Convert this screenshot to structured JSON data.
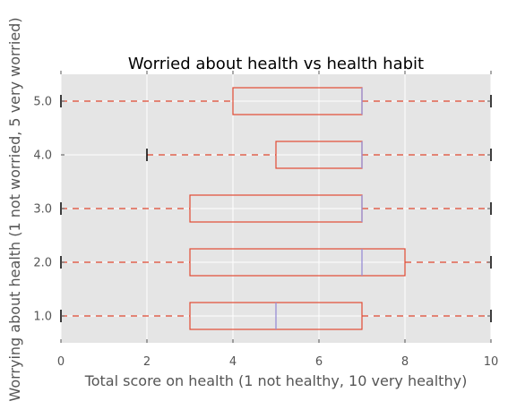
{
  "chart_data": {
    "type": "boxplot",
    "orientation": "horizontal",
    "title": "Worried about health vs health habit",
    "xlabel": "Total score on health (1 not healthy, 10 very healthy)",
    "ylabel": "Worrying about health (1 not worried, 5 very worried)",
    "xlim": [
      0,
      10
    ],
    "ylim": [
      0.5,
      5.5
    ],
    "x_ticks": [
      0,
      2,
      4,
      6,
      8,
      10
    ],
    "x_tick_labels": [
      "0",
      "2",
      "4",
      "6",
      "8",
      "10"
    ],
    "grid": true,
    "colors": {
      "background": "#e5e5e5",
      "grid": "#ffffff",
      "box": "#e24a33",
      "median": "#988ed5",
      "outlier": "#000000",
      "text": "#555555",
      "title": "#000000"
    },
    "categories": [
      "1.0",
      "2.0",
      "3.0",
      "4.0",
      "5.0"
    ],
    "boxes": [
      {
        "label": "1.0",
        "position": 1.0,
        "whisker_low": 0,
        "q1": 3,
        "median": 5,
        "q3": 7,
        "whisker_high": 10,
        "outliers": []
      },
      {
        "label": "2.0",
        "position": 2.0,
        "whisker_low": 0,
        "q1": 3,
        "median": 7,
        "q3": 8,
        "whisker_high": 10,
        "outliers": []
      },
      {
        "label": "3.0",
        "position": 3.0,
        "whisker_low": 0,
        "q1": 3,
        "median": 7,
        "q3": 7,
        "whisker_high": 10,
        "outliers": []
      },
      {
        "label": "4.0",
        "position": 4.0,
        "whisker_low": 2,
        "q1": 5,
        "median": 7,
        "q3": 7,
        "whisker_high": 10,
        "outliers": []
      },
      {
        "label": "5.0",
        "position": 5.0,
        "whisker_low": 0,
        "q1": 4,
        "median": 7,
        "q3": 7,
        "whisker_high": 10,
        "outliers": []
      }
    ]
  }
}
